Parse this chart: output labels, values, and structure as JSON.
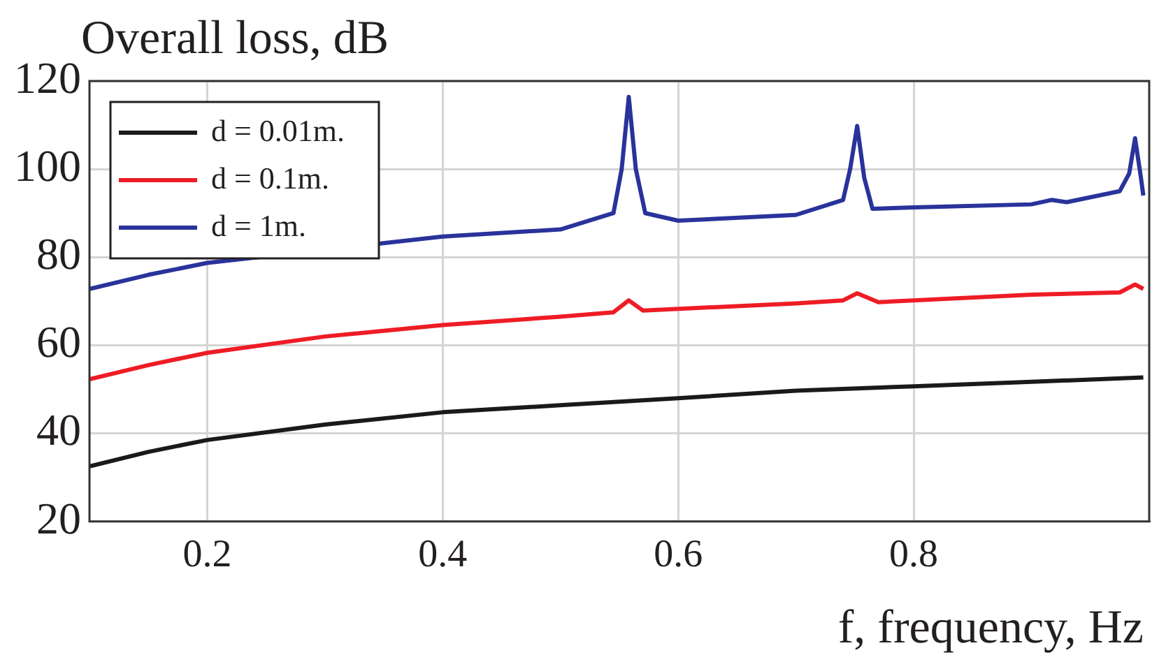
{
  "chart_data": {
    "type": "line",
    "ylabel": "Overall loss, dB",
    "xlabel": "f, frequency, Hz",
    "xlim": [
      0.1,
      1.0
    ],
    "xticks": [
      0.2,
      0.4,
      0.6,
      0.8
    ],
    "ylim": [
      20,
      120
    ],
    "yticks": [
      20,
      40,
      60,
      80,
      100,
      120
    ],
    "grid": true,
    "legend": "top left",
    "marker": "none",
    "line_style": "solid",
    "series": [
      {
        "name": "d = 0.01m.",
        "color": "#1a1a1a",
        "x": [
          0.1,
          0.15,
          0.2,
          0.3,
          0.4,
          0.5,
          0.6,
          0.7,
          0.8,
          0.9,
          0.995
        ],
        "values": [
          32.5,
          35.8,
          38.5,
          42,
          44.8,
          46.4,
          48,
          49.7,
          50.7,
          51.7,
          52.7
        ]
      },
      {
        "name": "d = 0.1m.",
        "color": "#ee1c25",
        "x": [
          0.1,
          0.15,
          0.2,
          0.3,
          0.4,
          0.5,
          0.545,
          0.558,
          0.57,
          0.7,
          0.74,
          0.752,
          0.77,
          0.9,
          0.975,
          0.988,
          0.995
        ],
        "values": [
          52.3,
          55.5,
          58.3,
          62,
          64.6,
          66.5,
          67.5,
          70.2,
          67.9,
          69.5,
          70.2,
          71.8,
          69.8,
          71.5,
          72,
          73.8,
          72.8
        ]
      },
      {
        "name": "d = 1m.",
        "color": "#29339b",
        "x": [
          0.1,
          0.15,
          0.2,
          0.3,
          0.4,
          0.5,
          0.545,
          0.552,
          0.558,
          0.564,
          0.572,
          0.6,
          0.7,
          0.74,
          0.746,
          0.752,
          0.758,
          0.765,
          0.8,
          0.9,
          0.917,
          0.93,
          0.975,
          0.983,
          0.988,
          0.993,
          0.995
        ],
        "values": [
          72.8,
          76,
          78.7,
          null,
          84.7,
          86.3,
          90,
          100,
          116.4,
          100,
          90,
          88.3,
          89.6,
          93,
          100,
          109.8,
          98,
          91,
          91.3,
          92,
          93,
          92.5,
          95,
          99,
          107,
          98,
          94
        ]
      }
    ]
  }
}
